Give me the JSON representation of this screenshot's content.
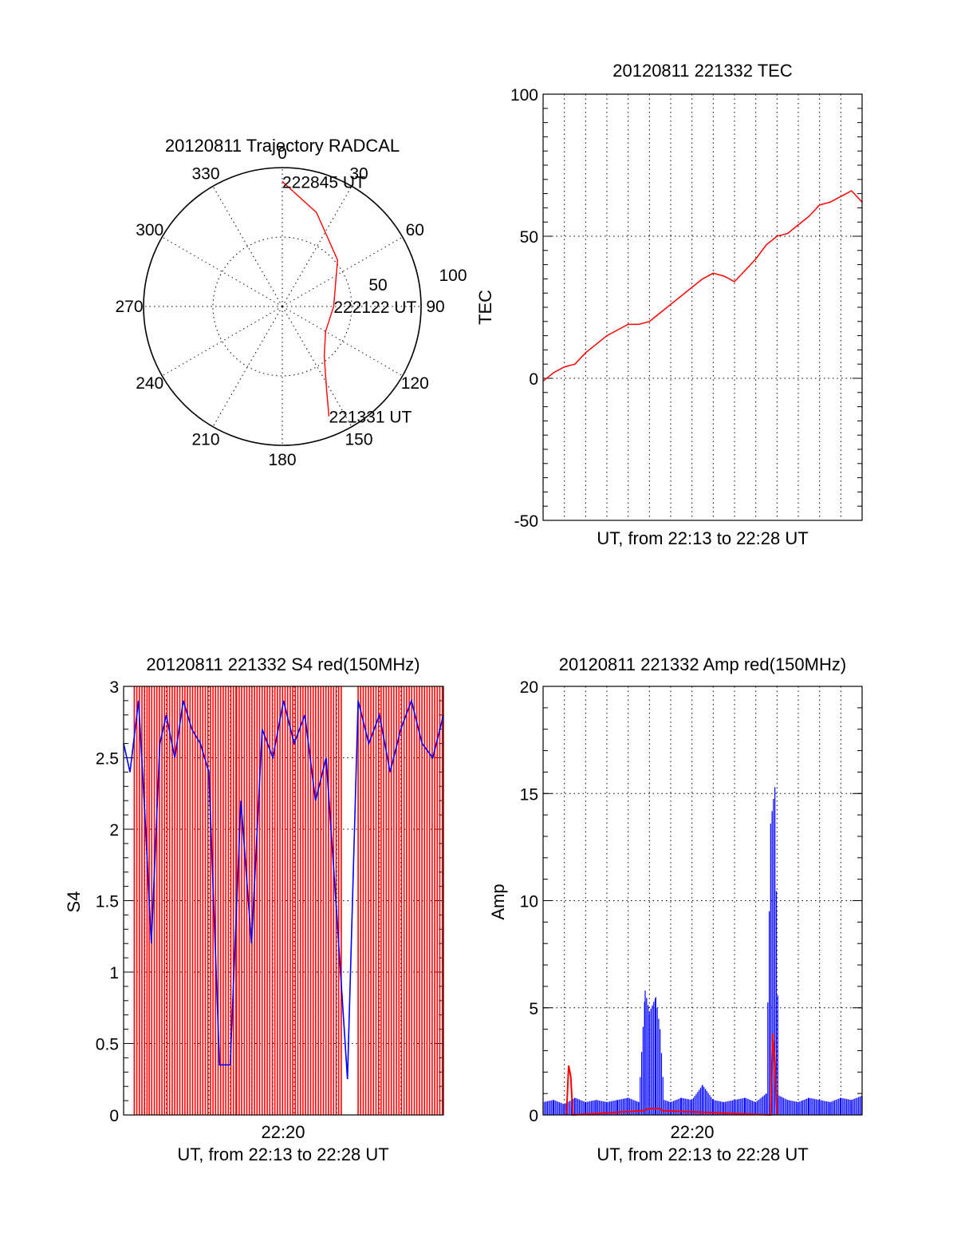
{
  "chart_data": [
    {
      "type": "polar",
      "title": "20120811 Trajectory RADCAL",
      "azimuth_labels": [
        "0",
        "30",
        "60",
        "90",
        "120",
        "150",
        "180",
        "210",
        "240",
        "270",
        "300",
        "330"
      ],
      "radius_labels": [
        "50",
        "100"
      ],
      "r_range": [
        0,
        100
      ],
      "grid": true,
      "series": [
        {
          "color": "#ff0000",
          "points": [
            {
              "az": 0,
              "r": 90
            },
            {
              "az": 20,
              "r": 72
            },
            {
              "az": 50,
              "r": 52
            },
            {
              "az": 90,
              "r": 37
            },
            {
              "az": 120,
              "r": 36
            },
            {
              "az": 140,
              "r": 47
            },
            {
              "az": 152,
              "r": 68
            },
            {
              "az": 157,
              "r": 86
            }
          ]
        }
      ],
      "annotations": [
        {
          "text": "222845 UT",
          "az": 0,
          "r": 90
        },
        {
          "text": "222122 UT",
          "az": 90,
          "r": 37
        },
        {
          "text": "221331 UT",
          "az": 157,
          "r": 86
        }
      ]
    },
    {
      "type": "line",
      "title": "20120811 221332 TEC",
      "xlabel": "UT, from 22:13 to 22:28 UT",
      "ylabel": "TEC",
      "xlim": [
        0,
        15
      ],
      "ylim": [
        -50,
        100
      ],
      "yticks": [
        "-50",
        "0",
        "50",
        "100"
      ],
      "grid": true,
      "series": [
        {
          "color": "#ff0000",
          "x": [
            0,
            0.5,
            1.0,
            1.5,
            2.0,
            2.5,
            3.0,
            3.5,
            4.0,
            4.5,
            5.0,
            5.5,
            6.0,
            6.5,
            7.0,
            7.5,
            8.0,
            8.5,
            9.0,
            9.5,
            10.0,
            10.5,
            11.0,
            11.5,
            12.0,
            12.5,
            13.0,
            13.5,
            14.0,
            14.5,
            15.0
          ],
          "y": [
            -1,
            2,
            4,
            5,
            9,
            12,
            15,
            17,
            19,
            19,
            20,
            23,
            26,
            29,
            32,
            35,
            37,
            36,
            34,
            38,
            42,
            47,
            50,
            51,
            54,
            57,
            61,
            62,
            64,
            66,
            62
          ]
        }
      ]
    },
    {
      "type": "line",
      "title": "20120811 221332 S4 red(150MHz)",
      "xlabel": "UT, from 22:13 to 22:28 UT",
      "ylabel": "S4",
      "xtick_label": "22:20",
      "xlim": [
        0,
        15
      ],
      "ylim": [
        0,
        3
      ],
      "yticks": [
        "0",
        "0.5",
        "1",
        "1.5",
        "2",
        "2.5",
        "3"
      ],
      "grid": true,
      "series": [
        {
          "color": "#ff0000",
          "segments": [
            {
              "x0": 0.5,
              "x1": 1.2,
              "low": 0,
              "high": 3
            },
            {
              "x0": 1.2,
              "x1": 5.3,
              "low": 0,
              "high": 3
            },
            {
              "x0": 5.3,
              "x1": 10.3,
              "low": 0,
              "high": 3
            },
            {
              "x0": 11.0,
              "x1": 15.0,
              "low": 0,
              "high": 3
            }
          ]
        },
        {
          "color": "#0000ff",
          "x": [
            0.0,
            0.3,
            0.7,
            1.0,
            1.3,
            1.7,
            2.0,
            2.4,
            2.8,
            3.2,
            3.6,
            4.0,
            4.5,
            5.0,
            5.5,
            6.0,
            6.5,
            7.0,
            7.5,
            8.0,
            8.5,
            9.0,
            9.5,
            10.0,
            10.5,
            11.0,
            11.5,
            12.0,
            12.5,
            13.0,
            13.5,
            14.0,
            14.5,
            15.0
          ],
          "y": [
            2.6,
            2.4,
            2.9,
            2.1,
            1.2,
            2.6,
            2.8,
            2.5,
            2.9,
            2.7,
            2.6,
            2.4,
            0.35,
            0.35,
            2.2,
            1.2,
            2.7,
            2.5,
            2.9,
            2.6,
            2.8,
            2.2,
            2.5,
            1.4,
            0.25,
            2.9,
            2.6,
            2.8,
            2.4,
            2.7,
            2.9,
            2.6,
            2.5,
            2.8
          ]
        }
      ]
    },
    {
      "type": "line",
      "title": "20120811 221332 Amp red(150MHz)",
      "xlabel": "UT, from 22:13 to 22:28 UT",
      "ylabel": "Amp",
      "xtick_label": "22:20",
      "xlim": [
        0,
        15
      ],
      "ylim": [
        0,
        20
      ],
      "yticks": [
        "0",
        "5",
        "10",
        "15",
        "20"
      ],
      "grid": true,
      "series": [
        {
          "color": "#0000ff",
          "x": [
            0.0,
            0.5,
            1.0,
            1.5,
            2.0,
            2.5,
            3.0,
            3.5,
            4.0,
            4.5,
            4.8,
            5.0,
            5.3,
            5.5,
            5.7,
            6.0,
            6.5,
            7.0,
            7.5,
            8.0,
            8.5,
            9.0,
            9.5,
            10.0,
            10.5,
            10.7,
            10.9,
            11.1,
            11.5,
            12.0,
            12.5,
            13.0,
            13.5,
            14.0,
            14.5,
            15.0
          ],
          "y": [
            0.6,
            0.7,
            0.5,
            0.8,
            0.6,
            0.7,
            0.6,
            0.7,
            0.8,
            0.6,
            5.8,
            4.8,
            5.5,
            4.0,
            0.7,
            0.6,
            0.8,
            0.7,
            1.4,
            0.7,
            0.6,
            0.7,
            0.8,
            0.6,
            1.0,
            13.6,
            15.3,
            0.9,
            0.7,
            0.6,
            0.8,
            0.7,
            0.6,
            0.8,
            0.7,
            0.9
          ]
        },
        {
          "color": "#ff0000",
          "x": [
            1.1,
            1.2,
            1.3,
            1.4,
            4.7,
            5.0,
            5.5,
            5.6,
            10.7,
            10.8,
            10.9,
            11.0
          ],
          "y": [
            0,
            2.3,
            1.8,
            0,
            0.2,
            0.3,
            0.3,
            0.2,
            0,
            3.8,
            2.5,
            0
          ]
        }
      ]
    }
  ]
}
